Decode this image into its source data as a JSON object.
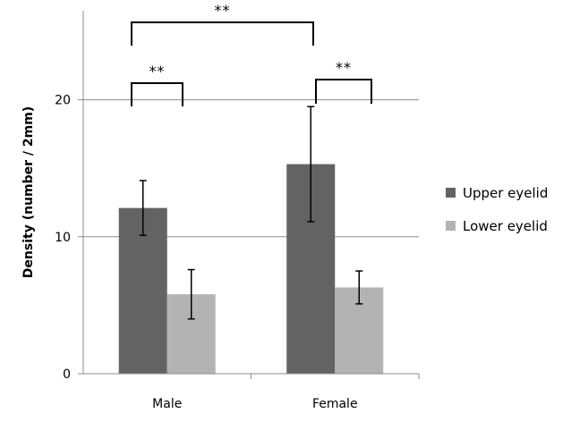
{
  "chart_data": {
    "type": "bar",
    "title": "",
    "xlabel": "",
    "ylabel": "Density (number / 2mm)",
    "categories": [
      "Male",
      "Female"
    ],
    "ylim": [
      0,
      26.5
    ],
    "yticks": [
      0,
      10,
      20
    ],
    "grid": true,
    "legend_position": "right",
    "series": [
      {
        "name": "Upper eyelid",
        "values": [
          12.1,
          15.3
        ],
        "errors": [
          2.0,
          4.2
        ],
        "color": "#636363"
      },
      {
        "name": "Lower eyelid",
        "values": [
          5.8,
          6.3
        ],
        "errors": [
          1.8,
          1.2
        ],
        "color": "#b3b3b3"
      }
    ],
    "significance": [
      {
        "label": "**",
        "between": "Male: Upper eyelid vs Lower eyelid"
      },
      {
        "label": "**",
        "between": "Female: Upper eyelid vs Lower eyelid"
      },
      {
        "label": "**",
        "between": "Upper eyelid: Male vs Female"
      }
    ]
  }
}
